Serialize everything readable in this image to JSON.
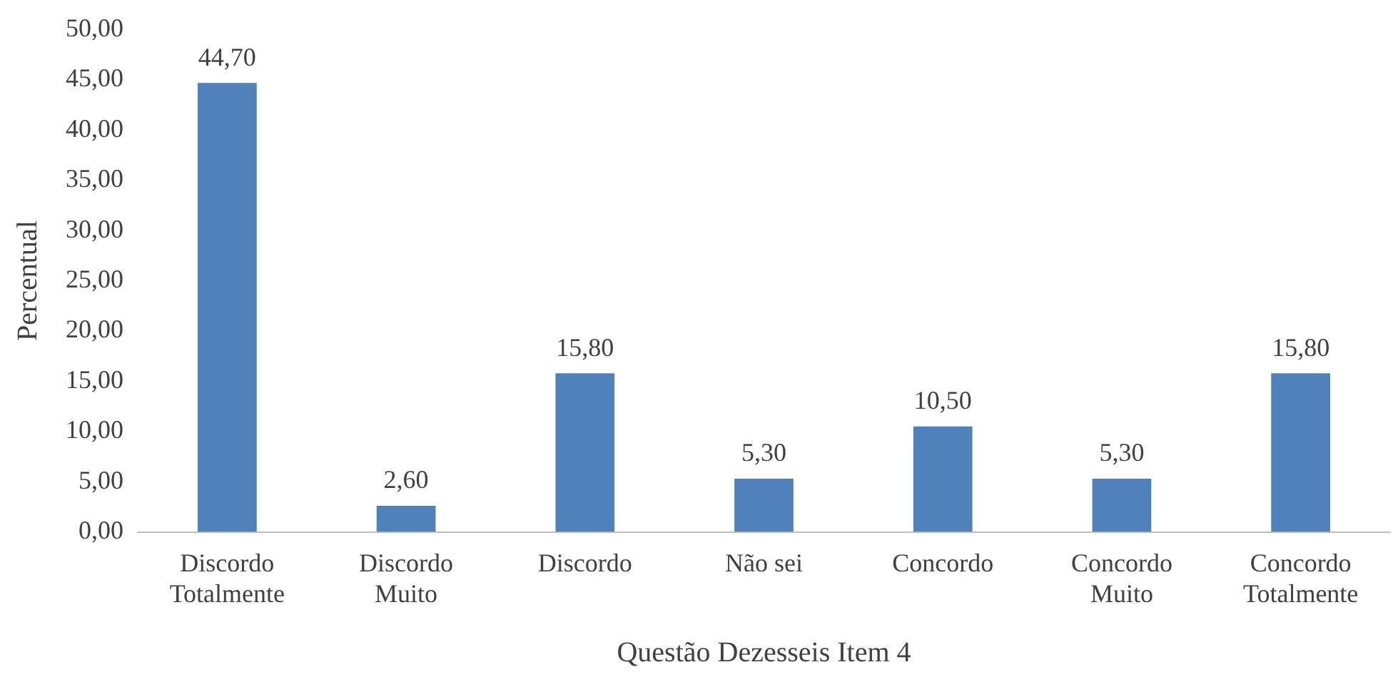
{
  "chart_data": {
    "type": "bar",
    "xlabel": "Questão Dezesseis Item 4",
    "ylabel": "Percentual",
    "categories": [
      "Discordo Totalmente",
      "Discordo Muito",
      "Discordo",
      "Não sei",
      "Concordo",
      "Concordo Muito",
      "Concordo Totalmente"
    ],
    "values": [
      44.7,
      2.6,
      15.8,
      5.3,
      10.5,
      5.3,
      15.8
    ],
    "value_labels": [
      "44,70",
      "2,60",
      "15,80",
      "5,30",
      "10,50",
      "5,30",
      "15,80"
    ],
    "color": "#4f81bd",
    "ylim": [
      0,
      50
    ],
    "yticks": [
      {
        "value": 0,
        "label": "0,00"
      },
      {
        "value": 5,
        "label": "5,00"
      },
      {
        "value": 10,
        "label": "10,00"
      },
      {
        "value": 15,
        "label": "15,00"
      },
      {
        "value": 20,
        "label": "20,00"
      },
      {
        "value": 25,
        "label": "25,00"
      },
      {
        "value": 30,
        "label": "30,00"
      },
      {
        "value": 35,
        "label": "35,00"
      },
      {
        "value": 40,
        "label": "40,00"
      },
      {
        "value": 45,
        "label": "45,00"
      },
      {
        "value": 50,
        "label": "50,00"
      }
    ],
    "grid": false,
    "legend": false
  }
}
